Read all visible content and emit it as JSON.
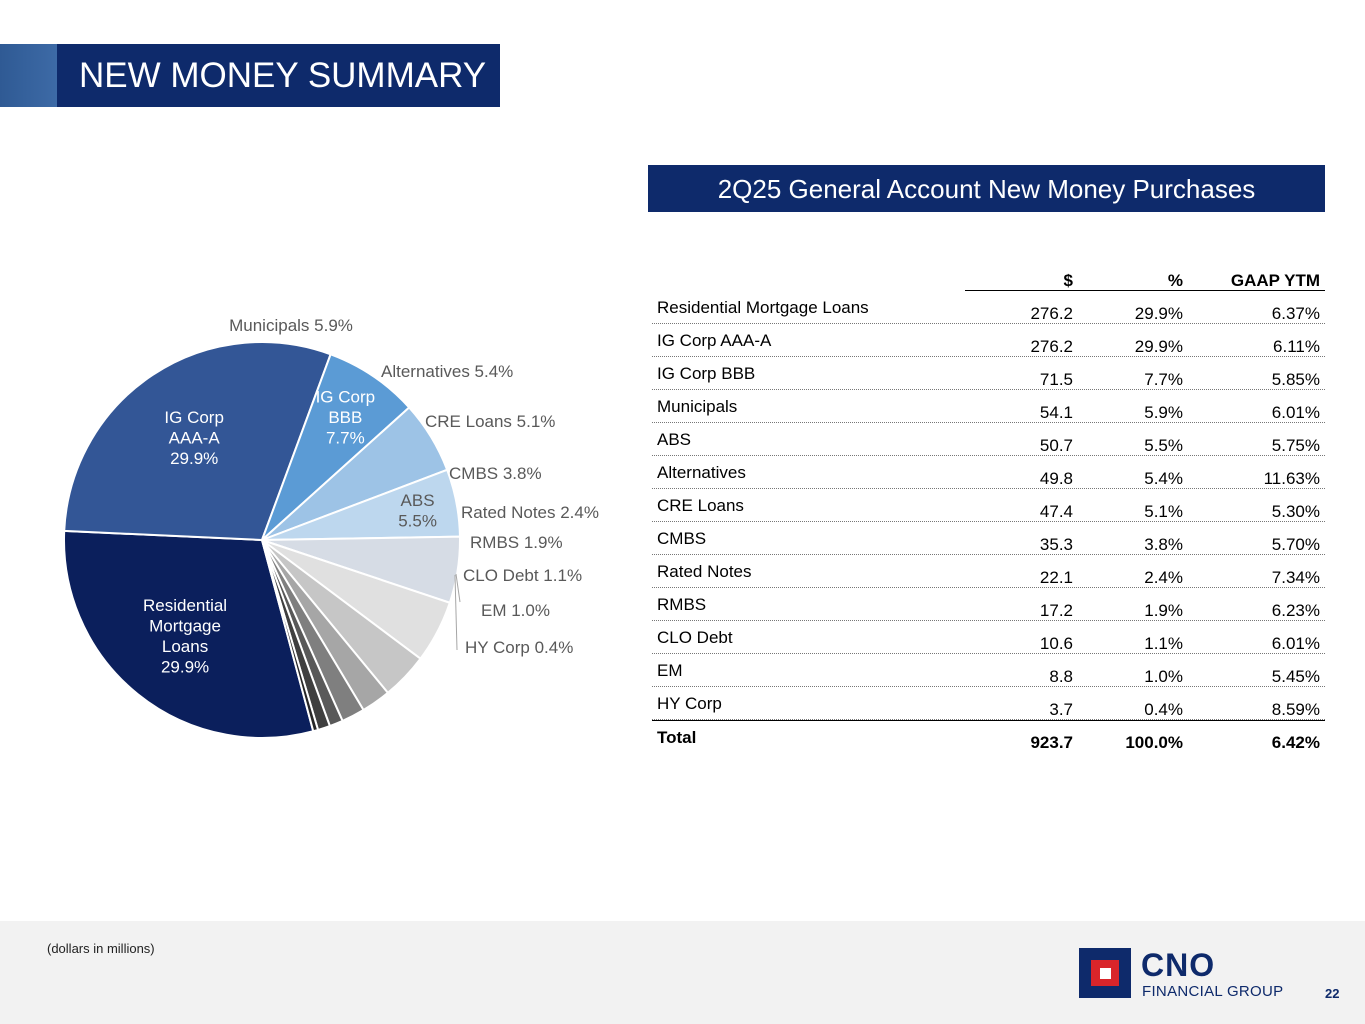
{
  "title": "NEW MONEY SUMMARY",
  "table_title": "2Q25 General Account New Money Purchases",
  "columns": [
    "$",
    "%",
    "GAAP YTM"
  ],
  "rows": [
    {
      "label": "Residential Mortgage Loans",
      "amount": "276.2",
      "pct": "29.9%",
      "ytm": "6.37%"
    },
    {
      "label": "IG Corp AAA-A",
      "amount": "276.2",
      "pct": "29.9%",
      "ytm": "6.11%"
    },
    {
      "label": "IG Corp BBB",
      "amount": "71.5",
      "pct": "7.7%",
      "ytm": "5.85%"
    },
    {
      "label": "Municipals",
      "amount": "54.1",
      "pct": "5.9%",
      "ytm": "6.01%"
    },
    {
      "label": "ABS",
      "amount": "50.7",
      "pct": "5.5%",
      "ytm": "5.75%"
    },
    {
      "label": "Alternatives",
      "amount": "49.8",
      "pct": "5.4%",
      "ytm": "11.63%"
    },
    {
      "label": "CRE Loans",
      "amount": "47.4",
      "pct": "5.1%",
      "ytm": "5.30%"
    },
    {
      "label": "CMBS",
      "amount": "35.3",
      "pct": "3.8%",
      "ytm": "5.70%"
    },
    {
      "label": "Rated Notes",
      "amount": "22.1",
      "pct": "2.4%",
      "ytm": "7.34%"
    },
    {
      "label": "RMBS",
      "amount": "17.2",
      "pct": "1.9%",
      "ytm": "6.23%"
    },
    {
      "label": "CLO Debt",
      "amount": "10.6",
      "pct": "1.1%",
      "ytm": "6.01%"
    },
    {
      "label": "EM",
      "amount": "8.8",
      "pct": "1.0%",
      "ytm": "5.45%"
    },
    {
      "label": "HY Corp",
      "amount": "3.7",
      "pct": "0.4%",
      "ytm": "8.59%"
    }
  ],
  "total": {
    "label": "Total",
    "amount": "923.7",
    "pct": "100.0%",
    "ytm": "6.42%"
  },
  "chart_data": {
    "type": "pie",
    "title": "",
    "slices": [
      {
        "label": "Residential Mortgage Loans",
        "value": 29.9,
        "display": "Residential\nMortgage\nLoans\n29.9%",
        "color": "#0b1f5c",
        "text_color": "#ffffff"
      },
      {
        "label": "IG Corp AAA-A",
        "value": 29.9,
        "display": "IG Corp\nAAA-A\n29.9%",
        "color": "#335696",
        "text_color": "#ffffff"
      },
      {
        "label": "IG Corp BBB",
        "value": 7.7,
        "display": "IG Corp\nBBB\n7.7%",
        "color": "#5b9bd5",
        "text_color": "#ffffff"
      },
      {
        "label": "Municipals",
        "value": 5.9,
        "display": "Municipals 5.9%",
        "color": "#9dc3e6",
        "text_color": "#595959"
      },
      {
        "label": "ABS",
        "value": 5.5,
        "display": "ABS\n5.5%",
        "color": "#bdd7ee",
        "text_color": "#595959"
      },
      {
        "label": "Alternatives",
        "value": 5.4,
        "display": "Alternatives 5.4%",
        "color": "#d6dce5",
        "text_color": "#595959"
      },
      {
        "label": "CRE Loans",
        "value": 5.1,
        "display": "CRE Loans 5.1%",
        "color": "#e0e0e0",
        "text_color": "#595959"
      },
      {
        "label": "CMBS",
        "value": 3.8,
        "display": "CMBS 3.8%",
        "color": "#c6c6c6",
        "text_color": "#595959"
      },
      {
        "label": "Rated Notes",
        "value": 2.4,
        "display": "Rated Notes 2.4%",
        "color": "#a6a6a6",
        "text_color": "#595959"
      },
      {
        "label": "RMBS",
        "value": 1.9,
        "display": "RMBS 1.9%",
        "color": "#7f7f7f",
        "text_color": "#595959"
      },
      {
        "label": "CLO Debt",
        "value": 1.1,
        "display": "CLO Debt 1.1%",
        "color": "#595959",
        "text_color": "#595959"
      },
      {
        "label": "EM",
        "value": 1.0,
        "display": "EM 1.0%",
        "color": "#3f3f3f",
        "text_color": "#595959"
      },
      {
        "label": "HY Corp",
        "value": 0.4,
        "display": "HY Corp 0.4%",
        "color": "#262626",
        "text_color": "#595959"
      }
    ]
  },
  "footnote": "(dollars in millions)",
  "logo": {
    "name": "CNO",
    "subtitle": "FINANCIAL GROUP"
  },
  "page_number": "22"
}
